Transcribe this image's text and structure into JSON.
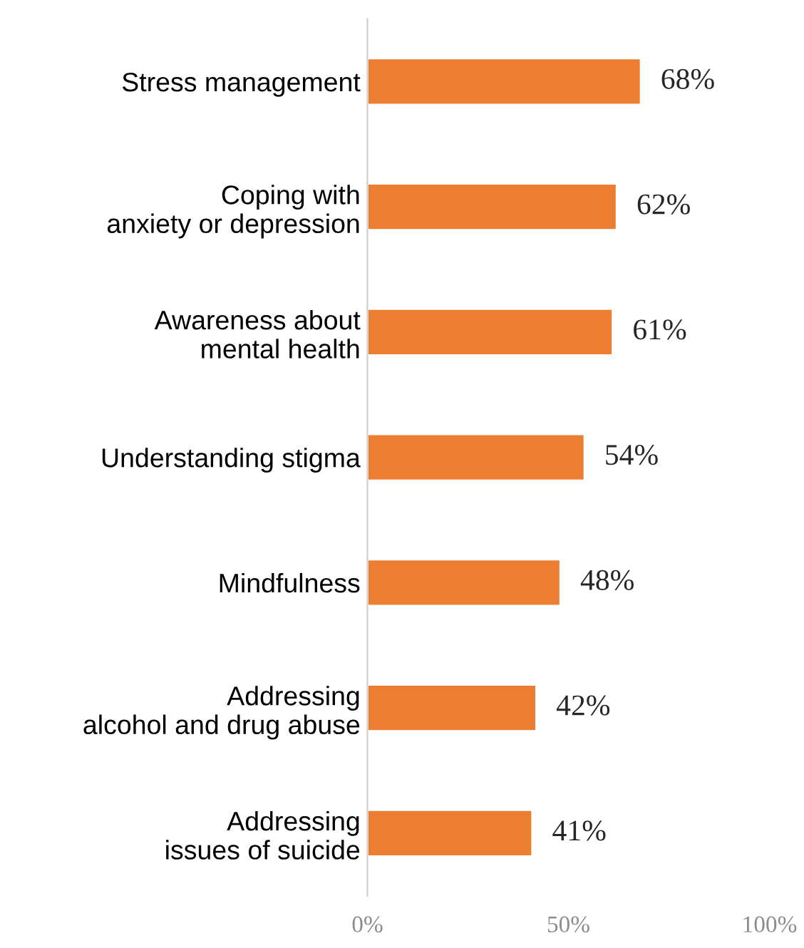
{
  "chart_data": {
    "type": "bar",
    "orientation": "horizontal",
    "categories": [
      "Stress management",
      "Coping with\nanxiety or depression",
      "Awareness about\nmental health",
      "Understanding stigma",
      "Mindfulness",
      "Addressing\nalcohol and drug abuse",
      "Addressing\nissues of suicide"
    ],
    "values": [
      68,
      62,
      61,
      54,
      48,
      42,
      41
    ],
    "value_labels": [
      "68%",
      "62%",
      "61%",
      "54%",
      "48%",
      "42%",
      "41%"
    ],
    "color": "#ed7d31",
    "xlim": [
      0,
      100
    ],
    "xticks": [
      {
        "value": 0,
        "label": "0%"
      },
      {
        "value": 50,
        "label": "50%"
      },
      {
        "value": 100,
        "label": "100%"
      }
    ],
    "grid": false,
    "legend": false
  }
}
